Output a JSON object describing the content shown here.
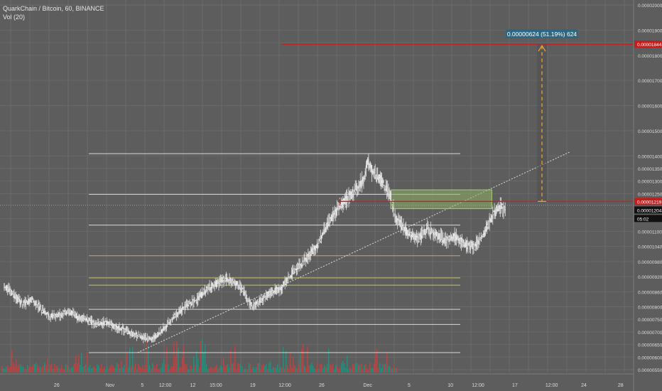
{
  "header": {
    "symbol_line": "QuarkChain / Bitcoin, 60, BINANCE",
    "volume_line": "Vol (20)"
  },
  "colors": {
    "background": "#5d5d5d",
    "grid": "#6a6a6a",
    "candle": "#e8e8e8",
    "level_white": "#d9d9d9",
    "level_orange": "#d4a06a",
    "level_yellow": "#c9c36a",
    "target_red": "#cc1f1f",
    "measure_orange": "#f0a030",
    "zone_green": "#8fae62",
    "vol_up": "#2a8f80",
    "vol_down": "#b24848"
  },
  "chart_data": {
    "type": "candlestick",
    "y_range": [
      5.5e-06,
      2e-05
    ],
    "y_tick_labels": [
      "0.00002000",
      "0.00001900",
      "0.00001850",
      "0.00001800",
      "0.00001700",
      "0.00001600",
      "0.00001500",
      "0.00001400",
      "0.00001350",
      "0.00001300",
      "0.00001250",
      "0.00001150",
      "0.00001100",
      "0.00001040",
      "0.00000980",
      "0.00000920",
      "0.00000860",
      "0.00000800",
      "0.00000750",
      "0.00000700",
      "0.00000650",
      "0.00000600",
      "0.00000550"
    ],
    "y_tick_values": [
      2e-05,
      1.9e-05,
      1.85e-05,
      1.8e-05,
      1.7e-05,
      1.6e-05,
      1.5e-05,
      1.4e-05,
      1.35e-05,
      1.3e-05,
      1.25e-05,
      1.15e-05,
      1.1e-05,
      1.04e-05,
      9.8e-06,
      9.2e-06,
      8.6e-06,
      8e-06,
      7.5e-06,
      7e-06,
      6.5e-06,
      6e-06,
      5.5e-06
    ],
    "x_range_days": [
      -5.5,
      57.5
    ],
    "x_tick_labels": [
      "26",
      "Nov",
      "5",
      "12:00",
      "12",
      "15:00",
      "19",
      "12:00",
      "26",
      "Dec",
      "5",
      "10",
      "12:00",
      "17",
      "12:00",
      "24",
      "28"
    ],
    "x_tick_days": [
      0.2,
      6,
      9.5,
      12,
      15,
      17.5,
      21.5,
      25,
      29,
      34,
      38.5,
      43,
      46,
      50,
      54,
      57.5,
      61.5
    ],
    "price_path": [
      [
        -5.5,
        8.8e-06
      ],
      [
        -4.5,
        8.5e-06
      ],
      [
        -3.5,
        8.1e-06
      ],
      [
        -2.5,
        8.3e-06
      ],
      [
        -1.5,
        7.9e-06
      ],
      [
        -0.5,
        7.6e-06
      ],
      [
        0.5,
        7.7e-06
      ],
      [
        1.5,
        7.8e-06
      ],
      [
        2.5,
        7.6e-06
      ],
      [
        3.5,
        7.5e-06
      ],
      [
        4.5,
        7.3e-06
      ],
      [
        5.5,
        7.4e-06
      ],
      [
        6.5,
        7.2e-06
      ],
      [
        7.5,
        7.1e-06
      ],
      [
        8.5,
        6.9e-06
      ],
      [
        9.5,
        6.8e-06
      ],
      [
        10.5,
        6.7e-06
      ],
      [
        11.5,
        7e-06
      ],
      [
        12.5,
        7.4e-06
      ],
      [
        13.5,
        7.8e-06
      ],
      [
        14.5,
        8.1e-06
      ],
      [
        15.5,
        8.3e-06
      ],
      [
        16.5,
        8.7e-06
      ],
      [
        17.5,
        8.9e-06
      ],
      [
        18.5,
        9.1e-06
      ],
      [
        19.5,
        9e-06
      ],
      [
        20.5,
        8.6e-06
      ],
      [
        21.5,
        8e-06
      ],
      [
        22.5,
        8.3e-06
      ],
      [
        23.5,
        8.6e-06
      ],
      [
        24.5,
        8.7e-06
      ],
      [
        25.5,
        9.2e-06
      ],
      [
        26.5,
        9.6e-06
      ],
      [
        27.5,
        1e-05
      ],
      [
        28.5,
        1.04e-05
      ],
      [
        29.5,
        1.12e-05
      ],
      [
        30.5,
        1.18e-05
      ],
      [
        31.5,
        1.22e-05
      ],
      [
        32.5,
        1.26e-05
      ],
      [
        33.5,
        1.3e-05
      ],
      [
        34,
        1.38e-05
      ],
      [
        34.5,
        1.34e-05
      ],
      [
        35.5,
        1.3e-05
      ],
      [
        36.5,
        1.24e-05
      ],
      [
        37,
        1.15e-05
      ],
      [
        37.5,
        1.13e-05
      ],
      [
        38.5,
        1.09e-05
      ],
      [
        39.5,
        1.07e-05
      ],
      [
        40.5,
        1.11e-05
      ],
      [
        41.5,
        1.09e-05
      ],
      [
        42.5,
        1.06e-05
      ],
      [
        43.5,
        1.08e-05
      ],
      [
        44.5,
        1.05e-05
      ],
      [
        45.5,
        1.04e-05
      ],
      [
        46.5,
        1.08e-05
      ],
      [
        47.5,
        1.16e-05
      ],
      [
        48.5,
        1.2e-05
      ],
      [
        49,
        1.18e-05
      ]
    ],
    "horizontal_levels": [
      {
        "price": 1.409e-05,
        "color": "white"
      },
      {
        "price": 1.247e-05,
        "color": "white"
      },
      {
        "price": 1.125e-05,
        "color": "white"
      },
      {
        "price": 1.003e-05,
        "color": "orange"
      },
      {
        "price": 9.15e-06,
        "color": "yellow"
      },
      {
        "price": 8.86e-06,
        "color": "yellow"
      },
      {
        "price": 7.9e-06,
        "color": "white"
      },
      {
        "price": 7.3e-06,
        "color": "white"
      },
      {
        "price": 6.18e-06,
        "color": "white"
      }
    ],
    "trendline": {
      "from": [
        9,
        6.18e-06
      ],
      "to": [
        56,
        1.416e-05
      ]
    },
    "zone": {
      "from_day": 36.5,
      "to_day": 47.5,
      "top": 1.265e-05,
      "bottom": 1.19e-05
    },
    "target_line": {
      "price": 1.844e-05,
      "label": "0.00001844"
    },
    "entry_line": {
      "price": 1.219e-05,
      "label": "0.00001219"
    },
    "current_price": {
      "price": 1.204e-05,
      "label": "0.00001204",
      "countdown": "05:02"
    },
    "measure_label": "0.00000624 (51.19%) 624",
    "volume_max": 1
  }
}
